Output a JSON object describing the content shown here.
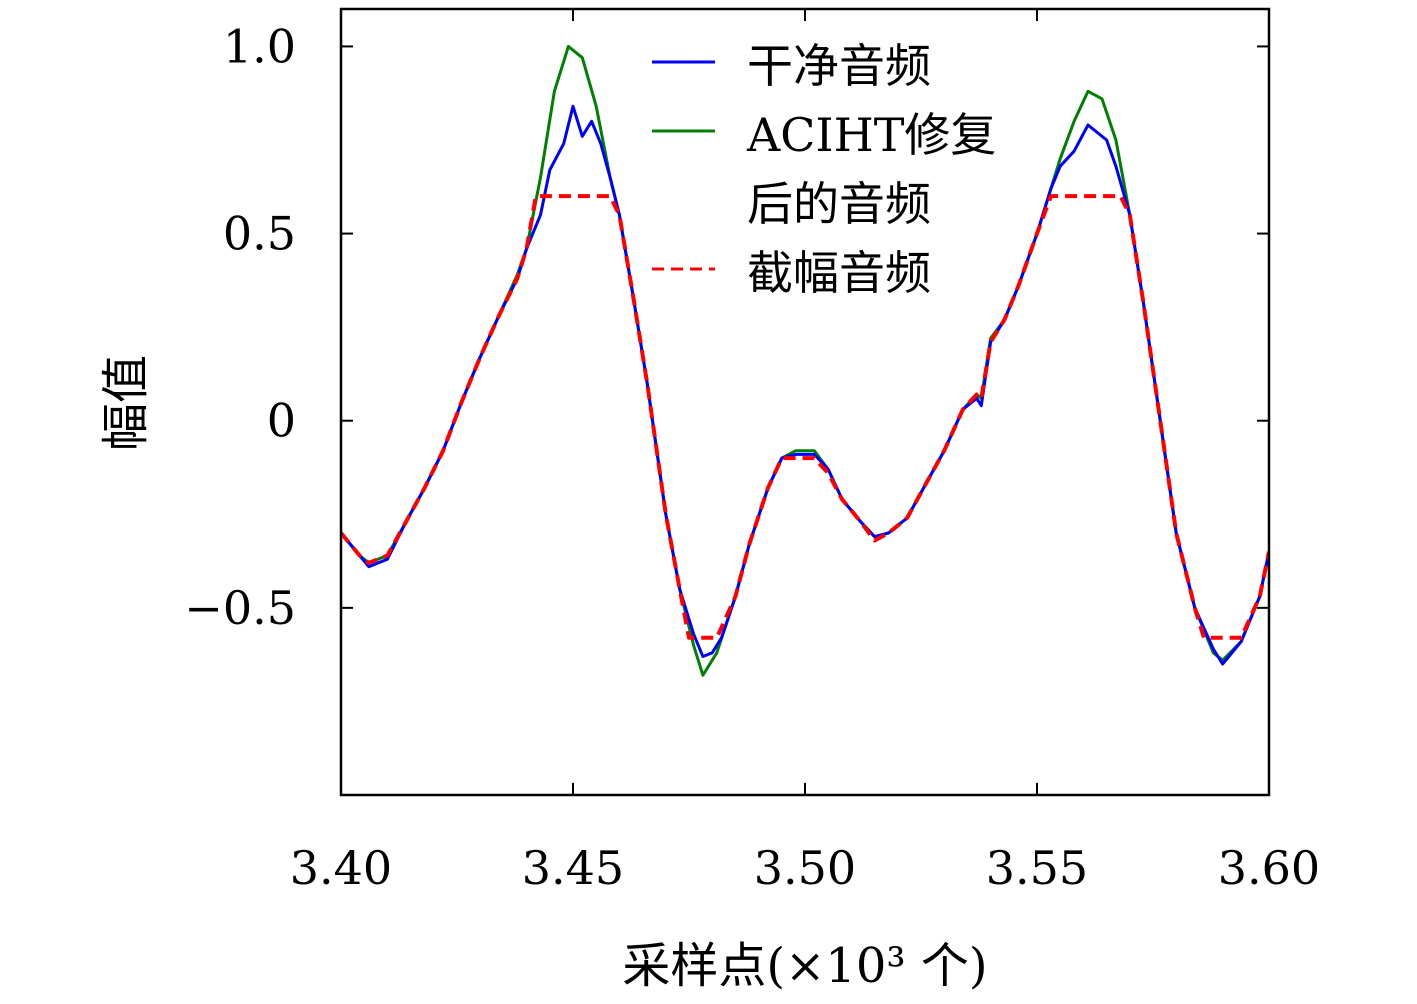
{
  "chart_data": {
    "type": "line",
    "title": "",
    "xlabel": "采样点(×10³ 个)",
    "ylabel": "幅值",
    "xlim": [
      3.4,
      3.6
    ],
    "ylim": [
      -1.0,
      1.1
    ],
    "x_ticks": [
      {
        "value": 3.4,
        "label": "3.40"
      },
      {
        "value": 3.45,
        "label": "3.45"
      },
      {
        "value": 3.5,
        "label": "3.50"
      },
      {
        "value": 3.55,
        "label": "3.55"
      },
      {
        "value": 3.6,
        "label": "3.60"
      }
    ],
    "y_ticks": [
      {
        "value": 1.0,
        "label": "1.0"
      },
      {
        "value": 0.5,
        "label": "0.5"
      },
      {
        "value": 0,
        "label": "0"
      },
      {
        "value": -0.5,
        "label": "−0.5"
      }
    ],
    "grid": false,
    "legend_position": "top-right",
    "legend": [
      {
        "lines": [
          "干净音频"
        ],
        "series": 0
      },
      {
        "lines": [
          "ACIHT修复",
          "后的音频"
        ],
        "series": 1
      },
      {
        "lines": [
          "截幅音频"
        ],
        "series": 2
      }
    ],
    "clip_level": [
      -0.58,
      0.6
    ],
    "series": [
      {
        "name": "干净音频",
        "color": "#0000ff",
        "style": "solid",
        "x": [
          3.4,
          3.404,
          3.406,
          3.41,
          3.414,
          3.418,
          3.422,
          3.426,
          3.43,
          3.434,
          3.438,
          3.44,
          3.443,
          3.445,
          3.448,
          3.45,
          3.452,
          3.454,
          3.456,
          3.458,
          3.46,
          3.463,
          3.466,
          3.47,
          3.473,
          3.476,
          3.478,
          3.48,
          3.482,
          3.485,
          3.488,
          3.492,
          3.495,
          3.498,
          3.5,
          3.502,
          3.505,
          3.508,
          3.512,
          3.515,
          3.518,
          3.522,
          3.526,
          3.53,
          3.534,
          3.537,
          3.538,
          3.54,
          3.543,
          3.546,
          3.55,
          3.553,
          3.555,
          3.558,
          3.561,
          3.563,
          3.565,
          3.567,
          3.57,
          3.573,
          3.576,
          3.58,
          3.584,
          3.588,
          3.59,
          3.594,
          3.598,
          3.6
        ],
        "y": [
          -0.3,
          -0.36,
          -0.39,
          -0.37,
          -0.27,
          -0.18,
          -0.08,
          0.05,
          0.17,
          0.28,
          0.38,
          0.46,
          0.55,
          0.67,
          0.74,
          0.84,
          0.76,
          0.8,
          0.74,
          0.65,
          0.55,
          0.33,
          0.1,
          -0.25,
          -0.45,
          -0.57,
          -0.63,
          -0.62,
          -0.58,
          -0.47,
          -0.33,
          -0.18,
          -0.1,
          -0.09,
          -0.09,
          -0.09,
          -0.13,
          -0.21,
          -0.27,
          -0.31,
          -0.3,
          -0.26,
          -0.17,
          -0.08,
          0.03,
          0.06,
          0.04,
          0.21,
          0.27,
          0.36,
          0.5,
          0.62,
          0.68,
          0.72,
          0.79,
          0.77,
          0.75,
          0.68,
          0.55,
          0.31,
          0.05,
          -0.3,
          -0.5,
          -0.61,
          -0.65,
          -0.59,
          -0.47,
          -0.35
        ]
      },
      {
        "name": "ACIHT修复后的音频",
        "color": "#008000",
        "style": "solid",
        "x": [
          3.4,
          3.404,
          3.406,
          3.41,
          3.414,
          3.418,
          3.422,
          3.426,
          3.43,
          3.434,
          3.438,
          3.44,
          3.443,
          3.446,
          3.449,
          3.452,
          3.455,
          3.458,
          3.46,
          3.463,
          3.466,
          3.47,
          3.473,
          3.476,
          3.478,
          3.481,
          3.485,
          3.488,
          3.492,
          3.495,
          3.498,
          3.5,
          3.502,
          3.505,
          3.508,
          3.512,
          3.515,
          3.518,
          3.522,
          3.526,
          3.53,
          3.534,
          3.537,
          3.538,
          3.54,
          3.543,
          3.546,
          3.55,
          3.553,
          3.555,
          3.558,
          3.561,
          3.564,
          3.567,
          3.57,
          3.573,
          3.576,
          3.58,
          3.584,
          3.588,
          3.59,
          3.594,
          3.598,
          3.6
        ],
        "y": [
          -0.3,
          -0.36,
          -0.38,
          -0.36,
          -0.27,
          -0.18,
          -0.08,
          0.05,
          0.17,
          0.28,
          0.39,
          0.46,
          0.65,
          0.88,
          1.0,
          0.97,
          0.84,
          0.65,
          0.55,
          0.33,
          0.1,
          -0.25,
          -0.45,
          -0.6,
          -0.68,
          -0.62,
          -0.47,
          -0.33,
          -0.18,
          -0.1,
          -0.08,
          -0.08,
          -0.08,
          -0.13,
          -0.21,
          -0.27,
          -0.31,
          -0.3,
          -0.26,
          -0.17,
          -0.08,
          0.03,
          0.07,
          0.06,
          0.22,
          0.27,
          0.36,
          0.5,
          0.62,
          0.7,
          0.8,
          0.88,
          0.86,
          0.75,
          0.55,
          0.31,
          0.05,
          -0.3,
          -0.5,
          -0.62,
          -0.64,
          -0.59,
          -0.47,
          -0.35
        ]
      },
      {
        "name": "截幅音频",
        "color": "#ff0000",
        "style": "dashed",
        "x": [
          3.4,
          3.404,
          3.406,
          3.41,
          3.414,
          3.418,
          3.422,
          3.426,
          3.43,
          3.434,
          3.438,
          3.44,
          3.442,
          3.446,
          3.45,
          3.455,
          3.458,
          3.46,
          3.463,
          3.466,
          3.47,
          3.473,
          3.475,
          3.481,
          3.485,
          3.488,
          3.492,
          3.495,
          3.498,
          3.5,
          3.502,
          3.505,
          3.508,
          3.512,
          3.515,
          3.518,
          3.522,
          3.526,
          3.53,
          3.534,
          3.537,
          3.538,
          3.54,
          3.543,
          3.546,
          3.55,
          3.553,
          3.555,
          3.56,
          3.565,
          3.568,
          3.57,
          3.573,
          3.576,
          3.58,
          3.584,
          3.586,
          3.592,
          3.594,
          3.598,
          3.6
        ],
        "y": [
          -0.3,
          -0.36,
          -0.38,
          -0.36,
          -0.27,
          -0.18,
          -0.08,
          0.05,
          0.17,
          0.28,
          0.38,
          0.46,
          0.6,
          0.6,
          0.6,
          0.6,
          0.6,
          0.55,
          0.33,
          0.1,
          -0.25,
          -0.45,
          -0.58,
          -0.58,
          -0.47,
          -0.33,
          -0.18,
          -0.1,
          -0.1,
          -0.1,
          -0.1,
          -0.14,
          -0.21,
          -0.27,
          -0.32,
          -0.3,
          -0.26,
          -0.17,
          -0.08,
          0.03,
          0.07,
          0.06,
          0.21,
          0.27,
          0.36,
          0.5,
          0.6,
          0.6,
          0.6,
          0.6,
          0.6,
          0.55,
          0.31,
          0.05,
          -0.3,
          -0.5,
          -0.58,
          -0.58,
          -0.58,
          -0.47,
          -0.35
        ]
      }
    ]
  }
}
